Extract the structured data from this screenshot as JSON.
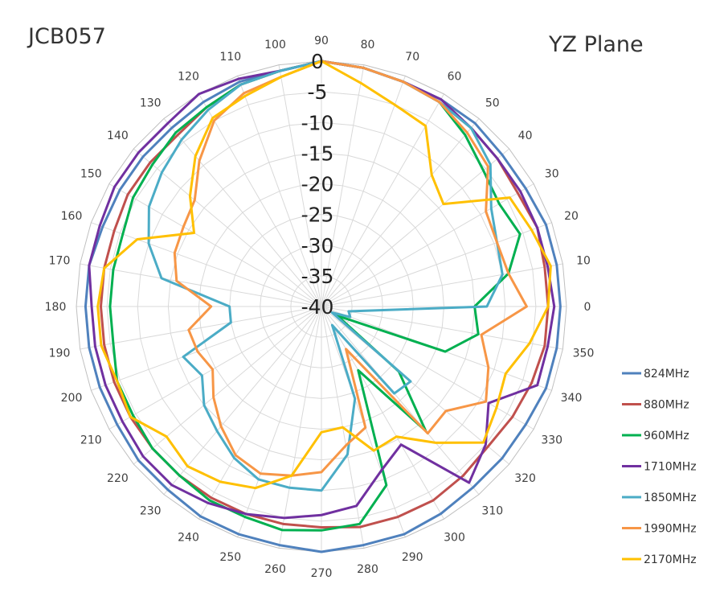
{
  "header": {
    "left_title": "JCB057",
    "right_title": "YZ  Plane"
  },
  "chart_data": {
    "type": "polar-line",
    "radial_axis": {
      "min": -40,
      "max": 0,
      "step": 5,
      "tick_labels": [
        "0",
        "-5",
        "-10",
        "-15",
        "-20",
        "-25",
        "-30",
        "-35",
        "-40"
      ]
    },
    "angular_axis": {
      "step_deg": 10,
      "units": "deg"
    },
    "grid": true,
    "legend": "right",
    "angles": [
      0,
      10,
      20,
      30,
      40,
      50,
      60,
      70,
      80,
      90,
      100,
      110,
      120,
      130,
      140,
      150,
      160,
      170,
      180,
      190,
      200,
      210,
      220,
      230,
      240,
      250,
      260,
      270,
      280,
      290,
      300,
      310,
      320,
      330,
      340,
      350
    ],
    "series": [
      {
        "name": "824MHz",
        "color": "#4f81bd",
        "values": [
          -1,
          -1,
          -1,
          -1.5,
          -1.5,
          -1,
          -1,
          -1,
          -0.5,
          0,
          -1,
          -1,
          -1.5,
          -2,
          -2,
          -2,
          -2,
          -1.5,
          -1.5,
          -1.5,
          -1.5,
          -1.5,
          -1,
          -1,
          -0.5,
          -0.5,
          -0.5,
          0,
          -0.5,
          -0.5,
          -1,
          -1.5,
          -1.5,
          -1.5,
          -1,
          -1
        ]
      },
      {
        "name": "880MHz",
        "color": "#c0504d",
        "values": [
          -3,
          -3,
          -2.5,
          -3,
          -2.5,
          -2,
          -1.5,
          -1,
          -0.5,
          0,
          -1,
          -1.5,
          -2.5,
          -3.5,
          -3.5,
          -3.5,
          -4,
          -4,
          -4,
          -4,
          -4,
          -4,
          -4,
          -4,
          -4,
          -4,
          -4,
          -4,
          -3.5,
          -3.5,
          -3.5,
          -4,
          -4.5,
          -4,
          -3.5,
          -3
        ]
      },
      {
        "name": "960MHz",
        "color": "#00b050",
        "values": [
          -15,
          -9,
          -5.5,
          -6.5,
          -5.5,
          -3.5,
          -1.5,
          -1,
          -0.5,
          0,
          -1,
          -1.5,
          -2.5,
          -3,
          -4,
          -4.5,
          -5.5,
          -5.5,
          -5.5,
          -5.5,
          -4.5,
          -4.5,
          -4,
          -4,
          -3.5,
          -3.5,
          -3,
          -3.5,
          -4,
          -9,
          -28,
          -13.5,
          -23.5,
          -37,
          -18.5,
          -14
        ]
      },
      {
        "name": "1710MHz",
        "color": "#7030a0",
        "values": [
          -2,
          -2.5,
          -2.5,
          -2.5,
          -2.5,
          -2,
          -1,
          -1,
          -0.5,
          0,
          -1,
          -0.5,
          0,
          -1,
          -1,
          -1,
          -1.5,
          -1.5,
          -2.5,
          -2.5,
          -2.5,
          -2.5,
          -2,
          -2,
          -3,
          -4,
          -5,
          -6,
          -7,
          -11.5,
          -14,
          -2.5,
          -5,
          -8.5,
          -2.5,
          -2.5
        ]
      },
      {
        "name": "1850MHz",
        "color": "#4bacc6",
        "values": [
          -13,
          -10,
          -9.5,
          -8,
          -4,
          -2,
          -1.5,
          -1,
          -0.5,
          0,
          -1,
          -1.5,
          -3,
          -4.5,
          -6,
          -7.5,
          -10,
          -13.5,
          -25,
          -25,
          -16,
          -17.5,
          -15,
          -13.5,
          -11.5,
          -10,
          -10,
          -10,
          -15.5,
          -24,
          -36.5,
          -21.5,
          -21,
          -38,
          -35,
          -35.5
        ]
      },
      {
        "name": "1990MHz",
        "color": "#f79646",
        "values": [
          -6.5,
          -9,
          -9.5,
          -9,
          -4.5,
          -3,
          -1.5,
          -1,
          -0.5,
          0,
          -2,
          -3,
          -5,
          -9,
          -13,
          -14,
          -14.5,
          -16,
          -22,
          -18,
          -18.5,
          -19.5,
          -17,
          -14.5,
          -12,
          -11,
          -12,
          -13,
          -17,
          -19,
          -32,
          -13,
          -13.5,
          -9,
          -11,
          -13.5
        ]
      },
      {
        "name": "2170MHz",
        "color": "#ffc000",
        "values": [
          -3,
          -2,
          -3.5,
          -4.5,
          -14,
          -12,
          -6,
          -5,
          -3,
          0,
          -2,
          -3.5,
          -4.5,
          -8,
          -12,
          -16,
          -8,
          -4,
          -3.5,
          -3.5,
          -4.5,
          -4,
          -7,
          -6,
          -7,
          -8.5,
          -12,
          -19.5,
          -20,
          -15,
          -15.5,
          -11,
          -5.5,
          -7,
          -8,
          -5.5
        ]
      }
    ]
  }
}
